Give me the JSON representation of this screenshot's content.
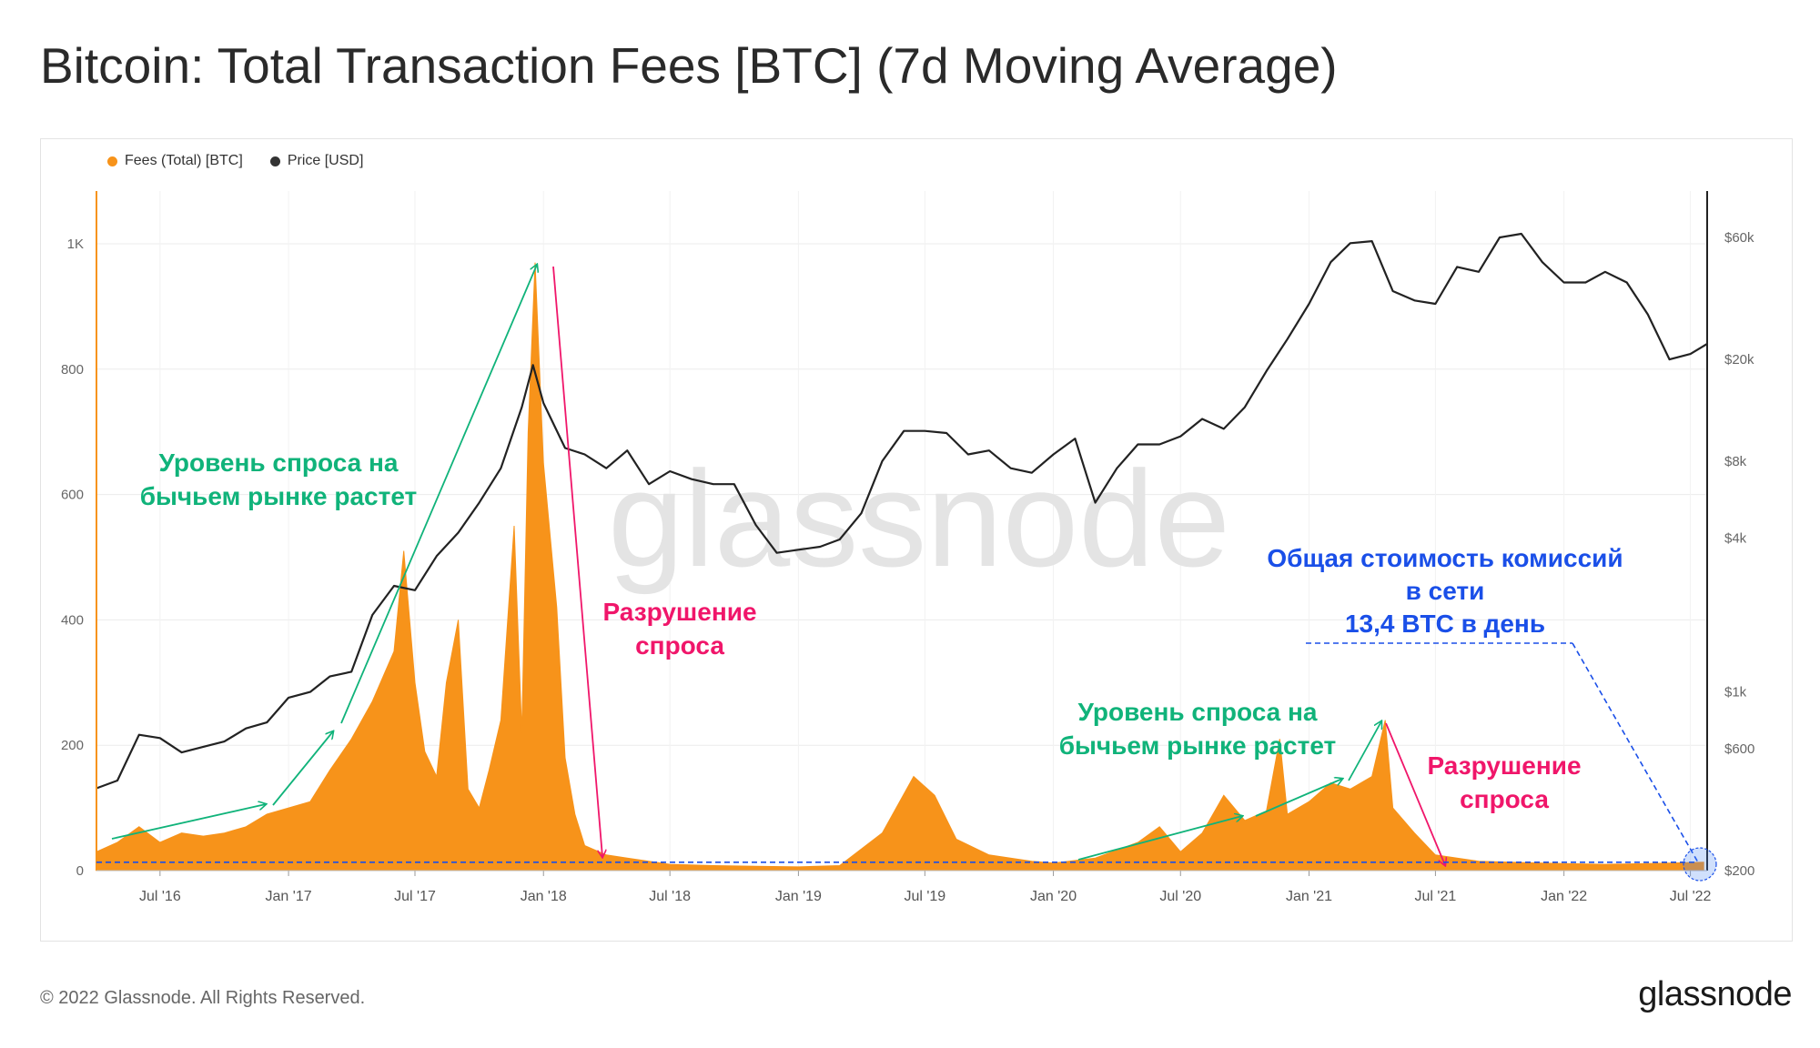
{
  "title": "Bitcoin: Total Transaction Fees [BTC] (7d Moving Average)",
  "legend": {
    "fees": "Fees (Total) [BTC]",
    "price": "Price [USD]"
  },
  "watermark": "glassnode",
  "footer": "© 2022 Glassnode. All Rights Reserved.",
  "brand": "glassnode",
  "colors": {
    "fees": "#f7931a",
    "price": "#222222",
    "up": "#10b37a",
    "down": "#f0166a",
    "note": "#1a4fe8",
    "axis_left": "#f7931a"
  },
  "annotations": {
    "demand_up_1": [
      "Уровень спроса на",
      "бычьем рынке растет"
    ],
    "demand_down_1": [
      "Разрушение",
      "спроса"
    ],
    "demand_up_2": [
      "Уровень спроса на",
      "бычьем рынке растет"
    ],
    "demand_down_2": [
      "Разрушение",
      "спроса"
    ],
    "fees_note": [
      "Общая стоимость комиссий",
      "в сети",
      "13,4 BTC в день"
    ]
  },
  "chart_data": {
    "type": "area",
    "x_ticks": [
      "Jul '16",
      "Jan '17",
      "Jul '17",
      "Jan '18",
      "Jul '18",
      "Jan '19",
      "Jul '19",
      "Jan '20",
      "Jul '20",
      "Jan '21",
      "Jul '21",
      "Jan '22",
      "Jul '22"
    ],
    "y_left_ticks": [
      "0",
      "200",
      "400",
      "600",
      "800",
      "1K"
    ],
    "y_left_values": [
      0,
      200,
      400,
      600,
      800,
      1000
    ],
    "y_right_ticks": [
      "$200",
      "$600",
      "$1k",
      "$4k",
      "$8k",
      "$20k",
      "$60k"
    ],
    "y_right_values": [
      200,
      600,
      1000,
      4000,
      8000,
      20000,
      60000
    ],
    "y_right_scale": "log",
    "ylim_left": [
      0,
      1000
    ],
    "ylim_right": [
      200,
      60000
    ],
    "x_range": [
      "2016-04",
      "2022-07"
    ],
    "series": [
      {
        "name": "Fees (Total) [BTC]",
        "axis": "left",
        "points": [
          [
            "2016-04-01",
            30
          ],
          [
            "2016-05-01",
            45
          ],
          [
            "2016-06-01",
            70
          ],
          [
            "2016-07-01",
            45
          ],
          [
            "2016-08-01",
            60
          ],
          [
            "2016-09-01",
            55
          ],
          [
            "2016-10-01",
            60
          ],
          [
            "2016-11-01",
            70
          ],
          [
            "2016-12-01",
            90
          ],
          [
            "2017-01-01",
            100
          ],
          [
            "2017-02-01",
            110
          ],
          [
            "2017-03-01",
            160
          ],
          [
            "2017-04-01",
            210
          ],
          [
            "2017-05-01",
            270
          ],
          [
            "2017-06-01",
            350
          ],
          [
            "2017-06-15",
            510
          ],
          [
            "2017-07-01",
            300
          ],
          [
            "2017-07-15",
            190
          ],
          [
            "2017-08-01",
            150
          ],
          [
            "2017-08-15",
            300
          ],
          [
            "2017-09-01",
            400
          ],
          [
            "2017-09-15",
            130
          ],
          [
            "2017-10-01",
            100
          ],
          [
            "2017-10-15",
            160
          ],
          [
            "2017-11-01",
            240
          ],
          [
            "2017-11-20",
            550
          ],
          [
            "2017-12-01",
            220
          ],
          [
            "2017-12-10",
            700
          ],
          [
            "2017-12-20",
            970
          ],
          [
            "2018-01-01",
            650
          ],
          [
            "2018-01-20",
            420
          ],
          [
            "2018-02-01",
            180
          ],
          [
            "2018-02-15",
            90
          ],
          [
            "2018-03-01",
            40
          ],
          [
            "2018-04-01",
            25
          ],
          [
            "2018-05-01",
            20
          ],
          [
            "2018-06-01",
            15
          ],
          [
            "2018-07-01",
            10
          ],
          [
            "2018-09-01",
            8
          ],
          [
            "2018-11-01",
            7
          ],
          [
            "2019-01-01",
            6
          ],
          [
            "2019-03-01",
            8
          ],
          [
            "2019-05-01",
            60
          ],
          [
            "2019-06-15",
            150
          ],
          [
            "2019-07-15",
            120
          ],
          [
            "2019-08-15",
            50
          ],
          [
            "2019-10-01",
            25
          ],
          [
            "2019-12-01",
            15
          ],
          [
            "2020-01-01",
            12
          ],
          [
            "2020-03-01",
            20
          ],
          [
            "2020-05-01",
            45
          ],
          [
            "2020-06-01",
            70
          ],
          [
            "2020-07-01",
            30
          ],
          [
            "2020-08-01",
            60
          ],
          [
            "2020-09-01",
            120
          ],
          [
            "2020-10-01",
            80
          ],
          [
            "2020-11-01",
            95
          ],
          [
            "2020-11-20",
            210
          ],
          [
            "2020-12-01",
            90
          ],
          [
            "2021-01-01",
            110
          ],
          [
            "2021-02-01",
            140
          ],
          [
            "2021-03-01",
            130
          ],
          [
            "2021-04-01",
            150
          ],
          [
            "2021-04-20",
            240
          ],
          [
            "2021-05-01",
            100
          ],
          [
            "2021-06-01",
            60
          ],
          [
            "2021-07-01",
            25
          ],
          [
            "2021-09-01",
            15
          ],
          [
            "2021-12-01",
            12
          ],
          [
            "2022-03-01",
            10
          ],
          [
            "2022-06-01",
            12
          ],
          [
            "2022-07-20",
            13.4
          ]
        ]
      },
      {
        "name": "Price [USD]",
        "axis": "right",
        "points": [
          [
            "2016-04-01",
            420
          ],
          [
            "2016-05-01",
            450
          ],
          [
            "2016-06-01",
            680
          ],
          [
            "2016-07-01",
            660
          ],
          [
            "2016-08-01",
            580
          ],
          [
            "2016-09-01",
            610
          ],
          [
            "2016-10-01",
            640
          ],
          [
            "2016-11-01",
            720
          ],
          [
            "2016-12-01",
            760
          ],
          [
            "2017-01-01",
            950
          ],
          [
            "2017-02-01",
            1000
          ],
          [
            "2017-03-01",
            1150
          ],
          [
            "2017-04-01",
            1200
          ],
          [
            "2017-05-01",
            2000
          ],
          [
            "2017-06-01",
            2600
          ],
          [
            "2017-07-01",
            2500
          ],
          [
            "2017-08-01",
            3400
          ],
          [
            "2017-09-01",
            4200
          ],
          [
            "2017-10-01",
            5500
          ],
          [
            "2017-11-01",
            7500
          ],
          [
            "2017-12-01",
            13000
          ],
          [
            "2017-12-17",
            19000
          ],
          [
            "2018-01-01",
            13500
          ],
          [
            "2018-02-01",
            9000
          ],
          [
            "2018-03-01",
            8500
          ],
          [
            "2018-04-01",
            7500
          ],
          [
            "2018-05-01",
            8800
          ],
          [
            "2018-06-01",
            6500
          ],
          [
            "2018-07-01",
            7300
          ],
          [
            "2018-08-01",
            6800
          ],
          [
            "2018-09-01",
            6500
          ],
          [
            "2018-10-01",
            6500
          ],
          [
            "2018-11-01",
            4500
          ],
          [
            "2018-12-01",
            3500
          ],
          [
            "2019-01-01",
            3600
          ],
          [
            "2019-02-01",
            3700
          ],
          [
            "2019-03-01",
            3950
          ],
          [
            "2019-04-01",
            5000
          ],
          [
            "2019-05-01",
            8000
          ],
          [
            "2019-06-01",
            10500
          ],
          [
            "2019-07-01",
            10500
          ],
          [
            "2019-08-01",
            10300
          ],
          [
            "2019-09-01",
            8500
          ],
          [
            "2019-10-01",
            8800
          ],
          [
            "2019-11-01",
            7500
          ],
          [
            "2019-12-01",
            7200
          ],
          [
            "2020-01-01",
            8500
          ],
          [
            "2020-02-01",
            9800
          ],
          [
            "2020-03-01",
            5500
          ],
          [
            "2020-04-01",
            7500
          ],
          [
            "2020-05-01",
            9300
          ],
          [
            "2020-06-01",
            9300
          ],
          [
            "2020-07-01",
            10000
          ],
          [
            "2020-08-01",
            11700
          ],
          [
            "2020-09-01",
            10700
          ],
          [
            "2020-10-01",
            13000
          ],
          [
            "2020-11-01",
            18000
          ],
          [
            "2020-12-01",
            24000
          ],
          [
            "2021-01-01",
            33000
          ],
          [
            "2021-02-01",
            48000
          ],
          [
            "2021-03-01",
            57000
          ],
          [
            "2021-04-01",
            58000
          ],
          [
            "2021-05-01",
            37000
          ],
          [
            "2021-06-01",
            34000
          ],
          [
            "2021-07-01",
            33000
          ],
          [
            "2021-08-01",
            46000
          ],
          [
            "2021-09-01",
            44000
          ],
          [
            "2021-10-01",
            60000
          ],
          [
            "2021-11-01",
            62000
          ],
          [
            "2021-12-01",
            48000
          ],
          [
            "2022-01-01",
            40000
          ],
          [
            "2022-02-01",
            40000
          ],
          [
            "2022-03-01",
            44000
          ],
          [
            "2022-04-01",
            40000
          ],
          [
            "2022-05-01",
            30000
          ],
          [
            "2022-06-01",
            20000
          ],
          [
            "2022-07-01",
            21000
          ],
          [
            "2022-07-25",
            23000
          ]
        ]
      }
    ],
    "current_fees_btc_per_day": 13.4,
    "grid": true,
    "legend_position": "top-left"
  }
}
